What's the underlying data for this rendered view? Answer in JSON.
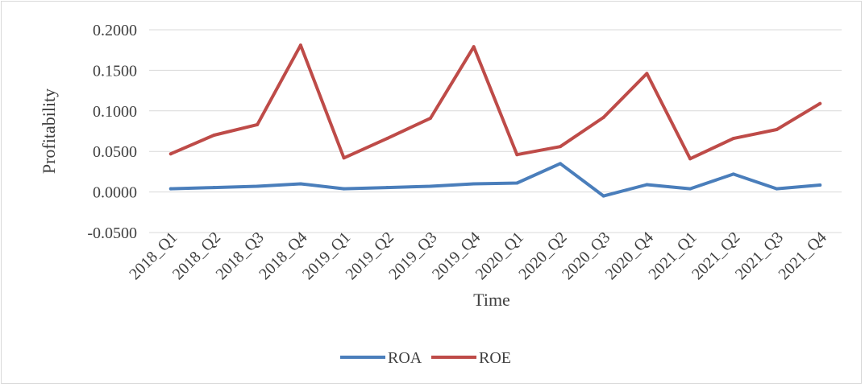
{
  "chart_data": {
    "type": "line",
    "title": "",
    "xlabel": "Time",
    "ylabel": "Profitability",
    "ylim": [
      -0.05,
      0.2
    ],
    "yticks": [
      -0.05,
      0.0,
      0.05,
      0.1,
      0.15,
      0.2
    ],
    "ytick_labels": [
      "-0.0500",
      "0.0000",
      "0.0500",
      "0.1000",
      "0.1500",
      "0.2000"
    ],
    "grid": true,
    "legend_position": "bottom",
    "categories": [
      "2018_Q1",
      "2018_Q2",
      "2018_Q3",
      "2018_Q4",
      "2019_Q1",
      "2019_Q2",
      "2019_Q3",
      "2019_Q4",
      "2020_Q1",
      "2020_Q2",
      "2020_Q3",
      "2020_Q4",
      "2021_Q1",
      "2021_Q2",
      "2021_Q3",
      "2021_Q4"
    ],
    "series": [
      {
        "name": "ROA",
        "color": "#4a7ebb",
        "values": [
          0.004,
          0.0055,
          0.007,
          0.01,
          0.004,
          0.0055,
          0.007,
          0.01,
          0.011,
          0.035,
          -0.005,
          0.009,
          0.004,
          0.022,
          0.004,
          0.0085
        ]
      },
      {
        "name": "ROE",
        "color": "#be4b48",
        "values": [
          0.047,
          0.07,
          0.083,
          0.181,
          0.042,
          0.066,
          0.091,
          0.179,
          0.046,
          0.056,
          0.092,
          0.146,
          0.041,
          0.066,
          0.077,
          0.109
        ]
      }
    ]
  }
}
